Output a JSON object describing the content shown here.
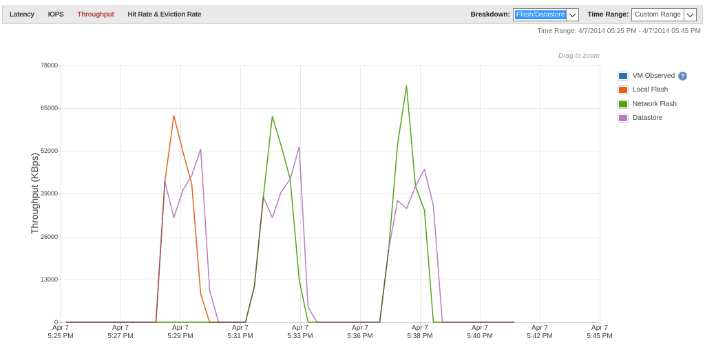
{
  "toolbar": {
    "tabs": [
      {
        "label": "Latency",
        "active": false
      },
      {
        "label": "IOPS",
        "active": false
      },
      {
        "label": "Throughput",
        "active": true
      },
      {
        "label": "Hit Rate & Eviction Rate",
        "active": false
      }
    ],
    "breakdown_label": "Breakdown:",
    "breakdown_value": "Flash/Datastore",
    "time_range_label": "Time Range:",
    "time_range_value": "Custom Range",
    "accent_color": "#b5473c"
  },
  "subheader": {
    "time_range_text": "Time Range: 4/7/2014 05:25 PM - 4/7/2014 05:45 PM"
  },
  "chart": {
    "drag_hint": "Drag to zoom",
    "ylabel": "Throughput (KBps)"
  },
  "legend": {
    "items": [
      {
        "label": "VM Observed",
        "color": "#2272b5",
        "has_help": true
      },
      {
        "label": "Local Flash",
        "color": "#e4601b",
        "has_help": false
      },
      {
        "label": "Network Flash",
        "color": "#53a315",
        "has_help": false
      },
      {
        "label": "Datastore",
        "color": "#b67dc2",
        "has_help": false
      }
    ],
    "help_icon_glyph": "?"
  },
  "chart_data": {
    "type": "line",
    "title": "",
    "xlabel": "",
    "ylabel": "Throughput (KBps)",
    "ylim": [
      0,
      78000
    ],
    "yticks": [
      0,
      13000,
      26000,
      39000,
      52000,
      65000,
      78000
    ],
    "ytick_labels": [
      "0",
      "13000",
      "26000",
      "39000",
      "52000",
      "65000",
      "78000"
    ],
    "xticks": [
      {
        "line1": "Apr 7",
        "line2": "5:25 PM"
      },
      {
        "line1": "Apr 7",
        "line2": "5:27 PM"
      },
      {
        "line1": "Apr 7",
        "line2": "5:29 PM"
      },
      {
        "line1": "Apr 7",
        "line2": "5:31 PM"
      },
      {
        "line1": "Apr 7",
        "line2": "5:33 PM"
      },
      {
        "line1": "Apr 7",
        "line2": "5:36 PM"
      },
      {
        "line1": "Apr 7",
        "line2": "5:38 PM"
      },
      {
        "line1": "Apr 7",
        "line2": "5:40 PM"
      },
      {
        "line1": "Apr 7",
        "line2": "5:42 PM"
      },
      {
        "line1": "Apr 7",
        "line2": "5:45 PM"
      }
    ],
    "grid": true,
    "legend_position": "right",
    "sampling_note": "values sampled every 20 seconds from ~5:25 PM; data ends ~5:42 PM, before the 5:45 PM end of the selected range",
    "series": [
      {
        "name": "VM Observed",
        "color": "#2272b5",
        "values": []
      },
      {
        "name": "Local Flash",
        "color": "#e4601b",
        "values": [
          0,
          0,
          0,
          0,
          0,
          0,
          0,
          0,
          0,
          0,
          0,
          42700,
          62700,
          51800,
          42000,
          8500,
          0,
          0,
          0,
          0,
          0,
          null,
          null,
          null,
          null,
          null,
          null,
          null,
          null,
          null,
          null,
          null,
          null,
          null,
          null,
          null,
          null,
          null,
          null,
          null,
          null,
          null,
          null,
          null,
          null,
          null,
          null,
          null,
          null,
          null,
          null
        ]
      },
      {
        "name": "Network Flash",
        "color": "#53a315",
        "values": [
          0,
          0,
          0,
          0,
          0,
          0,
          0,
          0,
          0,
          0,
          0,
          0,
          0,
          0,
          0,
          0,
          0,
          0,
          0,
          0,
          0,
          10900,
          38000,
          62400,
          53450,
          43400,
          13000,
          0,
          0,
          0,
          0,
          0,
          0,
          0,
          0,
          0,
          22000,
          54000,
          71700,
          41200,
          34000,
          0,
          0,
          0,
          0,
          0,
          0,
          0,
          0,
          0,
          0
        ]
      },
      {
        "name": "Datastore",
        "color": "#b67dc2",
        "values": [
          0,
          0,
          0,
          0,
          0,
          0,
          0,
          0,
          0,
          0,
          0,
          42700,
          31700,
          40000,
          44500,
          52500,
          9600,
          0,
          0,
          0,
          0,
          10900,
          38000,
          31750,
          39600,
          43400,
          53200,
          4500,
          0,
          0,
          0,
          0,
          0,
          0,
          0,
          0,
          22000,
          36900,
          34500,
          41200,
          46400,
          35300,
          0,
          0,
          0,
          0,
          0,
          0,
          0,
          0,
          0
        ]
      }
    ]
  }
}
